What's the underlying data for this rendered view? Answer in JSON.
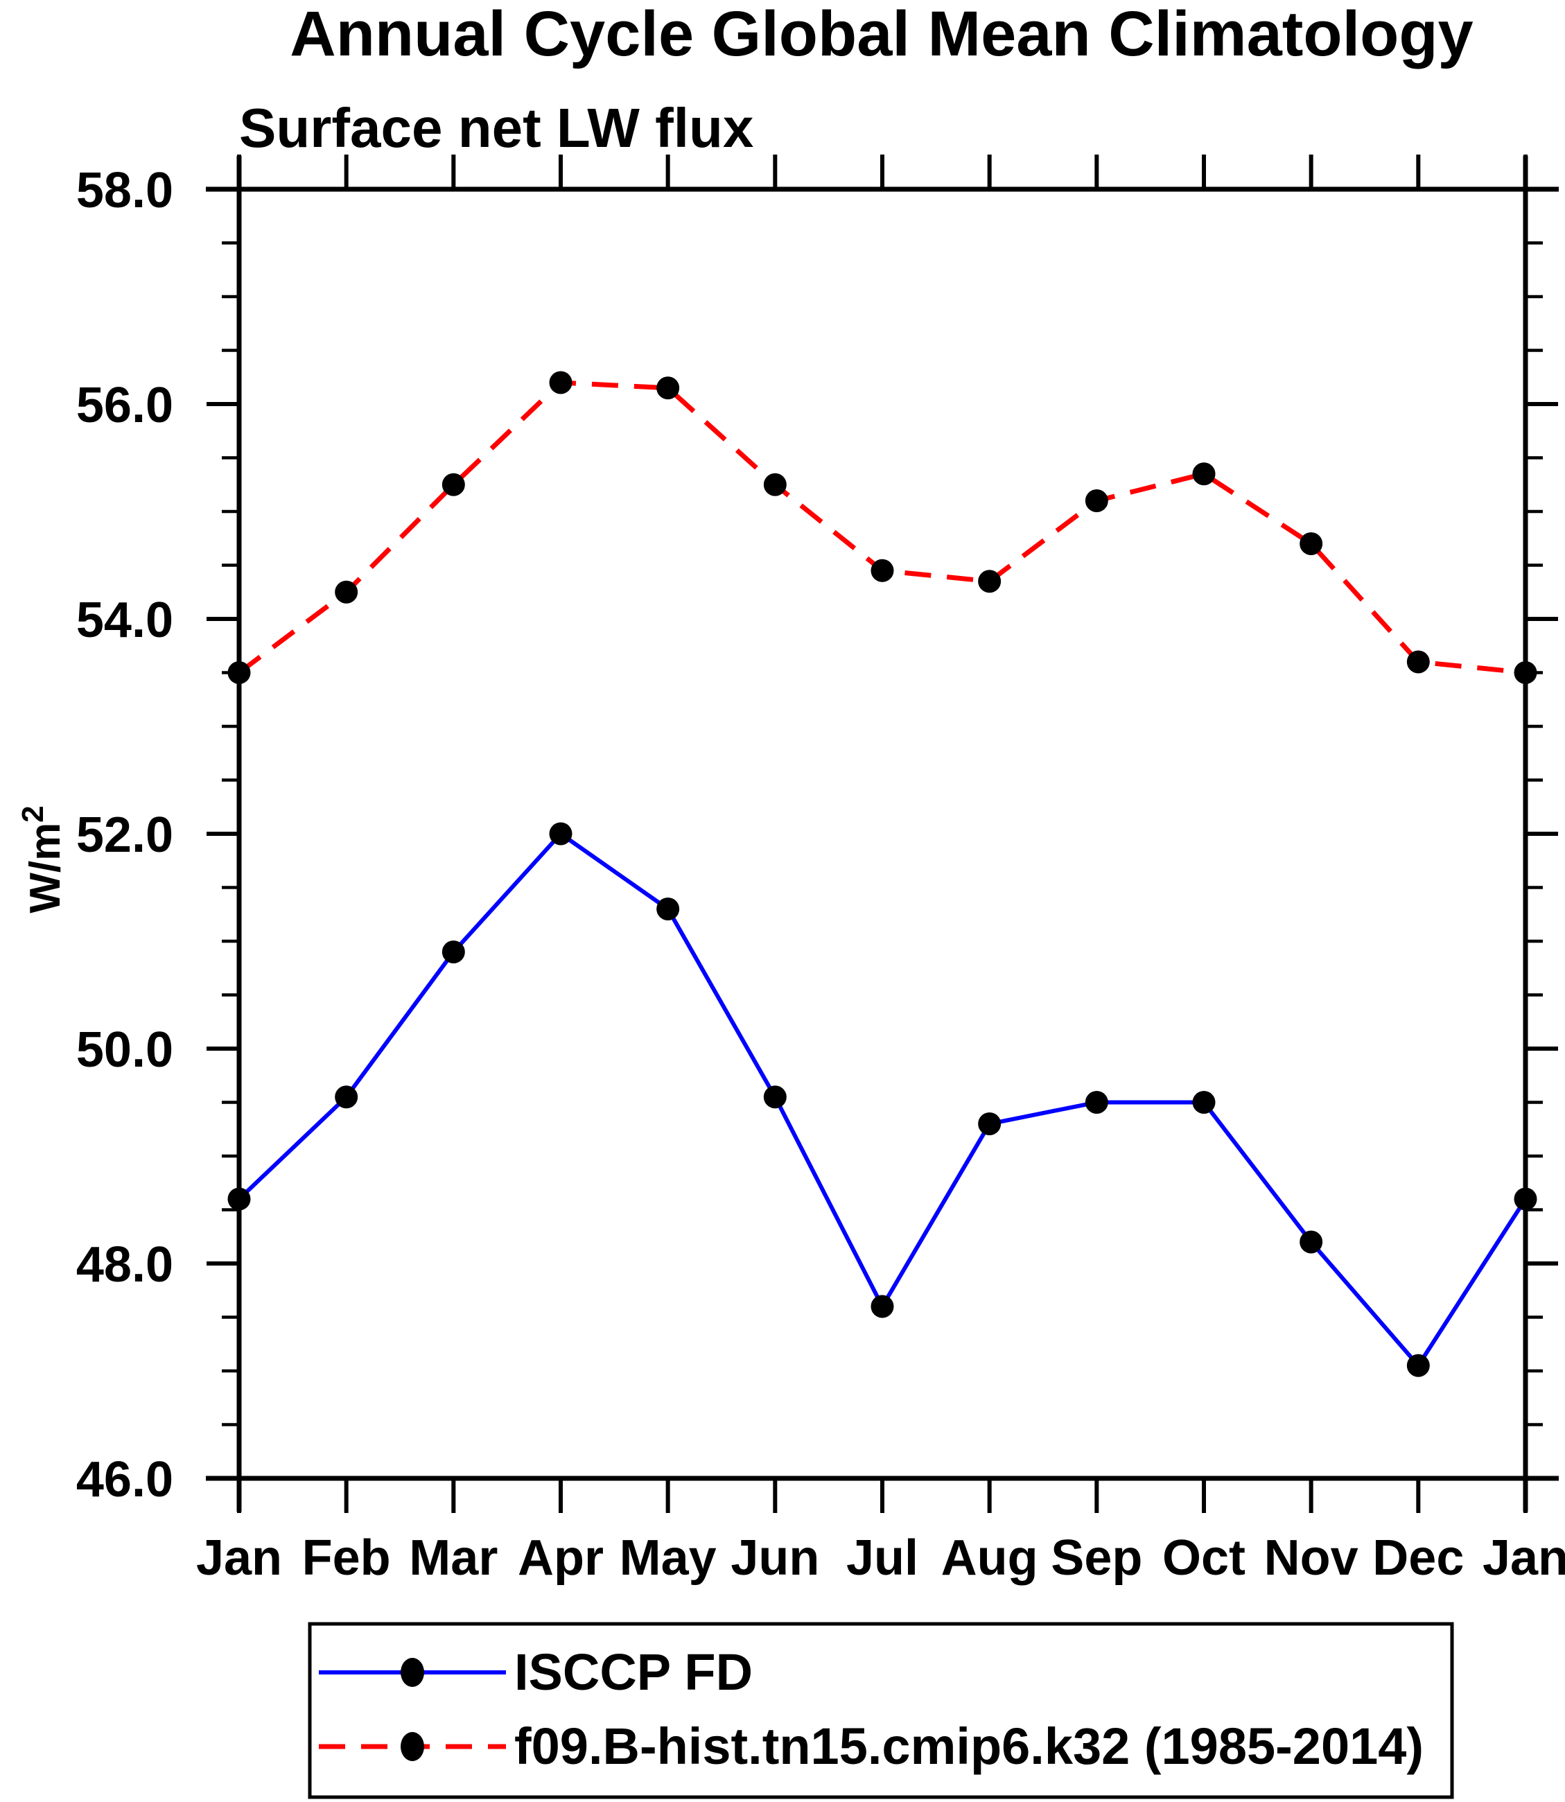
{
  "title": "Annual Cycle Global Mean Climatology",
  "subtitle": "Surface net LW flux",
  "y_axis": {
    "label_base": "W/m",
    "label_exponent": "2",
    "tick_format_example": "58.0"
  },
  "chart_data": {
    "type": "line",
    "title": "Annual Cycle Global Mean Climatology",
    "subtitle": "Surface net LW flux",
    "ylabel": "W/m^2",
    "xlabel": "",
    "grid": false,
    "legend_position": "bottom",
    "ylim": [
      46.0,
      58.0
    ],
    "y_major_ticks": [
      46.0,
      48.0,
      50.0,
      52.0,
      54.0,
      56.0,
      58.0
    ],
    "y_minor_step": 0.5,
    "categories": [
      "Jan",
      "Feb",
      "Mar",
      "Apr",
      "May",
      "Jun",
      "Jul",
      "Aug",
      "Sep",
      "Oct",
      "Nov",
      "Dec",
      "Jan"
    ],
    "series": [
      {
        "name": "ISCCP FD",
        "color": "#0000ff",
        "style": "solid",
        "marker": "filled-circle",
        "marker_color": "#000000",
        "values": [
          48.6,
          49.55,
          50.9,
          52.0,
          51.3,
          49.55,
          47.6,
          49.3,
          49.5,
          49.5,
          48.2,
          47.05,
          48.6
        ]
      },
      {
        "name": "f09.B-hist.tn15.cmip6.k32 (1985-2014)",
        "color": "#ff0000",
        "style": "dashed",
        "marker": "filled-circle",
        "marker_color": "#000000",
        "values": [
          53.5,
          54.25,
          55.25,
          56.2,
          56.15,
          55.25,
          54.45,
          54.35,
          55.1,
          55.35,
          54.7,
          53.6,
          53.5
        ]
      }
    ]
  },
  "colors": {
    "axis": "#000000",
    "text": "#000000",
    "series_isccp": "#0000ff",
    "series_model": "#ff0000",
    "marker": "#000000",
    "background": "#ffffff"
  }
}
